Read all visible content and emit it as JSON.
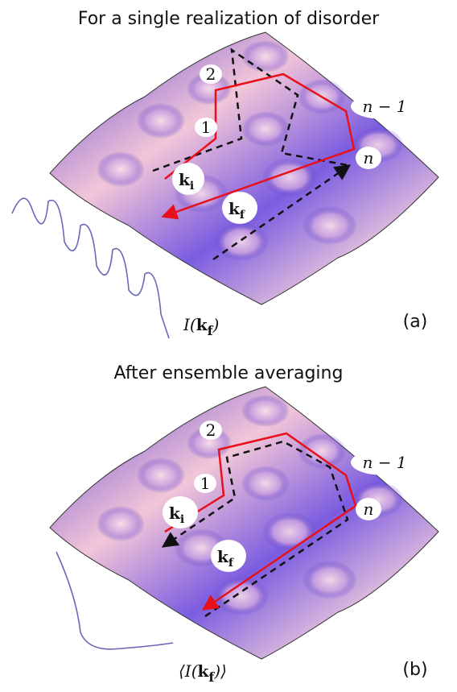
{
  "panels": [
    {
      "title": "For a single realization of disorder",
      "sites": {
        "first": "1",
        "second": "2",
        "second_last": "n − 1",
        "last": "n"
      },
      "incident": {
        "symbol": "k",
        "subscript": "i"
      },
      "final": {
        "symbol": "k",
        "subscript": "f"
      },
      "intensity": {
        "prefix": "I(",
        "symbol": "k",
        "subscript": "f",
        "suffix": ")"
      },
      "panel_label": "(a)"
    },
    {
      "title": "After ensemble averaging",
      "sites": {
        "first": "1",
        "second": "2",
        "second_last": "n − 1",
        "last": "n"
      },
      "incident": {
        "symbol": "k",
        "subscript": "i"
      },
      "final": {
        "symbol": "k",
        "subscript": "f"
      },
      "intensity": {
        "prefix": "⟨I(",
        "symbol": "k",
        "subscript": "f",
        "suffix": ")⟩"
      },
      "panel_label": "(b)"
    }
  ]
}
